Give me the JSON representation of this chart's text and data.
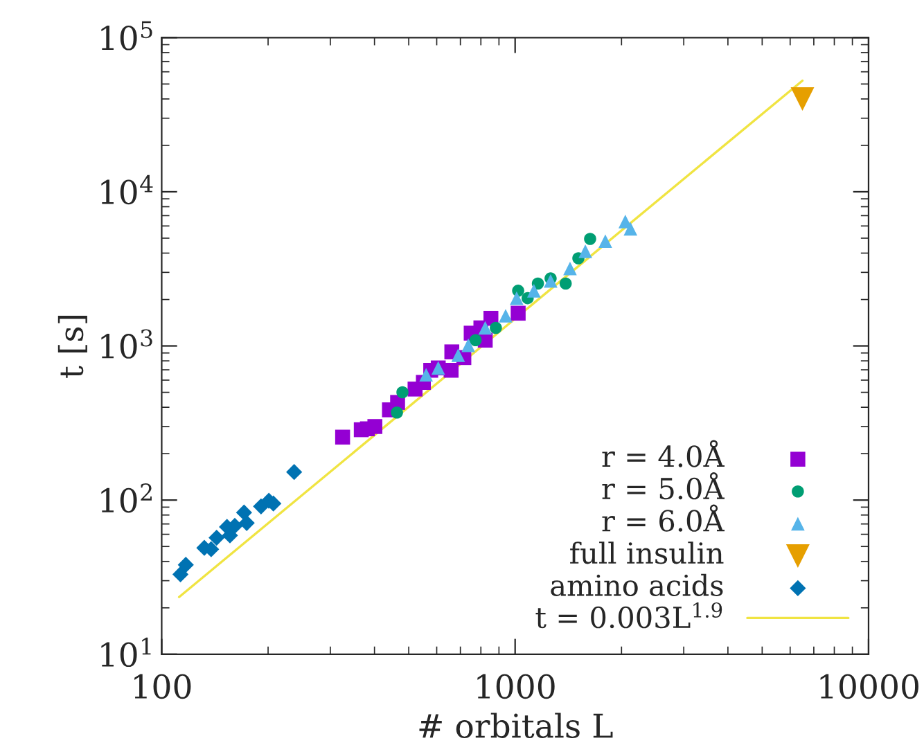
{
  "chart_data": {
    "type": "scatter",
    "xlabel": "# orbitals L",
    "ylabel": "t [s]",
    "log": "xy",
    "grid": false,
    "legend": "bottom right",
    "xlim": [
      100,
      10000
    ],
    "ylim": [
      10,
      100000
    ],
    "xticks": [
      100,
      1000,
      10000
    ],
    "yticks": [
      {
        "value": 10,
        "label": "10$^{1}$"
      },
      {
        "value": 100,
        "label": "10$^{2}$"
      },
      {
        "value": 1000,
        "label": "10$^{3}$"
      },
      {
        "value": 10000,
        "label": "10$^{4}$"
      },
      {
        "value": 100000,
        "label": "10$^{5}$"
      }
    ],
    "series": [
      {
        "name": "r = 4.0Å",
        "marker": "square",
        "color": "#9400d3",
        "x": [
          325,
          367,
          382,
          401,
          441,
          465,
          521,
          550,
          577,
          606,
          659,
          662,
          716,
          751,
          800,
          854,
          1020,
          823
        ],
        "values": [
          256,
          286,
          290,
          300,
          385,
          430,
          525,
          580,
          695,
          720,
          695,
          915,
          840,
          1210,
          1310,
          1510,
          1630,
          1090
        ]
      },
      {
        "name": "r = 5.0Å",
        "marker": "circle",
        "color": "#009e73",
        "x": [
          463,
          480,
          773,
          882,
          1020,
          1085,
          1160,
          1260,
          1390,
          1510,
          1630
        ],
        "values": [
          370,
          500,
          1090,
          1310,
          2280,
          2040,
          2540,
          2740,
          2540,
          3700,
          4950
        ]
      },
      {
        "name": "r = 6.0Å",
        "marker": "triangle",
        "color": "#56b4e9",
        "x": [
          560,
          606,
          690,
          737,
          823,
          940,
          1010,
          1130,
          1260,
          1430,
          1580,
          1800,
          2050,
          2120
        ],
        "values": [
          650,
          720,
          870,
          1010,
          1310,
          1570,
          2040,
          2280,
          2640,
          3180,
          4110,
          4780,
          6410,
          5750
        ]
      },
      {
        "name": "full insulin",
        "marker": "triangle_down",
        "color": "#e69f00",
        "x": [
          6500
        ],
        "values": [
          40000
        ]
      },
      {
        "name": "amino acids",
        "marker": "diamond",
        "color": "#0072b2",
        "x": [
          113,
          117,
          132,
          138,
          143,
          153,
          156,
          161,
          171,
          174,
          191,
          201,
          207,
          237
        ],
        "values": [
          33,
          38,
          49,
          48,
          57,
          67,
          59,
          68,
          83,
          71,
          91,
          99,
          95,
          152
        ]
      },
      {
        "name": "t = 0.003L$^{1.9}$",
        "type": "line",
        "line_style": "solid",
        "color": "#f0e442",
        "x": [
          112,
          6500
        ],
        "values": [
          23.5,
          52600
        ]
      }
    ]
  }
}
